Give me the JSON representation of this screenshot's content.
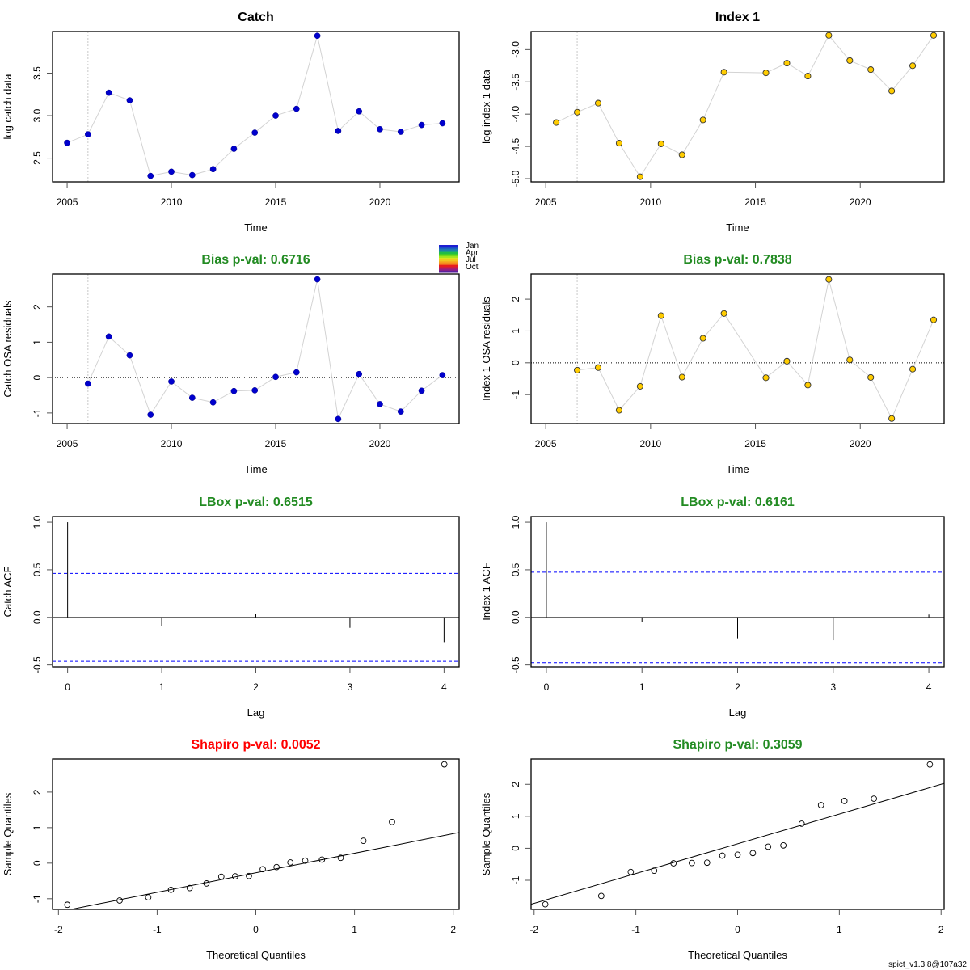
{
  "colors": {
    "catch_point": "#0000cd",
    "index_point": "#ffcc00",
    "green_title": "#228b22",
    "red_title": "#ff0000",
    "ci_line": "#0000ff",
    "connector": "#d3d3d3",
    "season_colors": [
      "#1e1ed2",
      "#1c4bc8",
      "#1e78b4",
      "#1ea082",
      "#22be46",
      "#50d21e",
      "#a0e61e",
      "#dce61e",
      "#f0c81e",
      "#f5a01e",
      "#f0641e",
      "#e61e1e",
      "#c81e46",
      "#961e82",
      "#5a1e9b"
    ]
  },
  "footer": "spict_v1.3.8@107a32",
  "season_legend": [
    "Jan",
    "Apr",
    "Jul",
    "Oct"
  ],
  "chart_data": [
    {
      "id": "catch",
      "type": "scatter",
      "title": "Catch",
      "title_color": "#000000",
      "xlabel": "Time",
      "ylabel": "log catch data",
      "xlim": [
        2004.3,
        2023.8
      ],
      "ylim": [
        2.22,
        3.99
      ],
      "xticks": [
        2005,
        2010,
        2015,
        2020
      ],
      "yticks": [
        2.5,
        3.0,
        3.5
      ],
      "ytick_labels": [
        "2.5",
        "3.0",
        "3.5"
      ],
      "vline": 2006,
      "point_style": "catch",
      "x": [
        2005,
        2006,
        2007,
        2008,
        2009,
        2010,
        2011,
        2012,
        2013,
        2014,
        2015,
        2016,
        2017,
        2018,
        2019,
        2020,
        2021,
        2022,
        2023
      ],
      "y": [
        2.68,
        2.78,
        3.27,
        3.18,
        2.29,
        2.34,
        2.3,
        2.37,
        2.61,
        2.8,
        3.0,
        3.08,
        3.94,
        2.82,
        3.05,
        2.84,
        2.81,
        2.89,
        2.91
      ]
    },
    {
      "id": "index1",
      "type": "scatter",
      "title": "Index 1",
      "title_color": "#000000",
      "xlabel": "Time",
      "ylabel": "log index 1 data",
      "xlim": [
        2004.3,
        2024.0
      ],
      "ylim": [
        -5.05,
        -2.72
      ],
      "xticks": [
        2005,
        2010,
        2015,
        2020
      ],
      "yticks": [
        -5.0,
        -4.5,
        -4.0,
        -3.5,
        -3.0
      ],
      "ytick_labels": [
        "-5.0",
        "-4.5",
        "-4.0",
        "-3.5",
        "-3.0"
      ],
      "vline": 2006.5,
      "point_style": "index",
      "x": [
        2005.5,
        2006.5,
        2007.5,
        2008.5,
        2009.5,
        2010.5,
        2011.5,
        2012.5,
        2013.5,
        2015.5,
        2016.5,
        2017.5,
        2018.5,
        2019.5,
        2020.5,
        2021.5,
        2022.5,
        2023.5
      ],
      "y": [
        -4.13,
        -3.97,
        -3.83,
        -4.45,
        -4.97,
        -4.46,
        -4.63,
        -4.09,
        -3.35,
        -3.36,
        -3.21,
        -3.41,
        -2.78,
        -3.17,
        -3.31,
        -3.64,
        -3.25,
        -2.78
      ]
    },
    {
      "id": "catch-osa",
      "type": "scatter",
      "title": "Bias p-val: 0.6716",
      "title_color": "#228b22",
      "xlabel": "Time",
      "ylabel": "Catch OSA residuals",
      "xlim": [
        2004.3,
        2023.8
      ],
      "ylim": [
        -1.3,
        2.93
      ],
      "xticks": [
        2005,
        2010,
        2015,
        2020
      ],
      "yticks": [
        -1,
        0,
        1,
        2
      ],
      "ytick_labels": [
        "-1",
        "0",
        "1",
        "2"
      ],
      "vline": 2006,
      "hline": 0,
      "point_style": "catch",
      "x": [
        2006,
        2007,
        2008,
        2009,
        2010,
        2011,
        2012,
        2013,
        2014,
        2015,
        2016,
        2017,
        2018,
        2019,
        2020,
        2021,
        2022,
        2023
      ],
      "y": [
        -0.17,
        1.16,
        0.63,
        -1.05,
        -0.11,
        -0.57,
        -0.7,
        -0.38,
        -0.36,
        0.02,
        0.15,
        2.78,
        -1.17,
        0.1,
        -0.75,
        -0.96,
        -0.37,
        0.07
      ]
    },
    {
      "id": "index1-osa",
      "type": "scatter",
      "title": "Bias p-val: 0.7838",
      "title_color": "#228b22",
      "xlabel": "Time",
      "ylabel": "Index 1 OSA residuals",
      "xlim": [
        2004.3,
        2024.0
      ],
      "ylim": [
        -1.91,
        2.79
      ],
      "xticks": [
        2005,
        2010,
        2015,
        2020
      ],
      "yticks": [
        -1,
        0,
        1,
        2
      ],
      "ytick_labels": [
        "-1",
        "0",
        "1",
        "2"
      ],
      "vline": 2006.5,
      "hline": 0,
      "point_style": "index",
      "x": [
        2006.5,
        2007.5,
        2008.5,
        2009.5,
        2010.5,
        2011.5,
        2012.5,
        2013.5,
        2015.5,
        2016.5,
        2017.5,
        2018.5,
        2019.5,
        2020.5,
        2021.5,
        2022.5,
        2023.5
      ],
      "y": [
        -0.23,
        -0.15,
        -1.49,
        -0.74,
        1.48,
        -0.45,
        0.77,
        1.55,
        -0.47,
        0.05,
        -0.7,
        2.62,
        0.09,
        -0.46,
        -1.75,
        -0.2,
        1.35
      ]
    },
    {
      "id": "catch-acf",
      "type": "bar",
      "title": "LBox p-val: 0.6515",
      "title_color": "#228b22",
      "xlabel": "Lag",
      "ylabel": "Catch ACF",
      "xlim": [
        -0.16,
        4.16
      ],
      "ylim": [
        -0.52,
        1.06
      ],
      "xticks": [
        0,
        1,
        2,
        3,
        4
      ],
      "yticks": [
        -0.5,
        0.0,
        0.5,
        1.0
      ],
      "ytick_labels": [
        "-0.5",
        "0.0",
        "0.5",
        "1.0"
      ],
      "ci": 0.462,
      "lags": [
        0,
        1,
        2,
        3,
        4
      ],
      "values": [
        1.0,
        -0.09,
        0.04,
        -0.11,
        -0.26
      ]
    },
    {
      "id": "index1-acf",
      "type": "bar",
      "title": "LBox p-val: 0.6161",
      "title_color": "#228b22",
      "xlabel": "Lag",
      "ylabel": "Index 1 ACF",
      "xlim": [
        -0.16,
        4.16
      ],
      "ylim": [
        -0.52,
        1.06
      ],
      "xticks": [
        0,
        1,
        2,
        3,
        4
      ],
      "yticks": [
        -0.5,
        0.0,
        0.5,
        1.0
      ],
      "ytick_labels": [
        "-0.5",
        "0.0",
        "0.5",
        "1.0"
      ],
      "ci": 0.475,
      "lags": [
        0,
        1,
        2,
        3,
        4
      ],
      "values": [
        1.0,
        -0.05,
        -0.22,
        -0.24,
        0.03
      ]
    },
    {
      "id": "catch-qq",
      "type": "scatter",
      "title": "Shapiro p-val: 0.0052",
      "title_color": "#ff0000",
      "xlabel": "Theoretical Quantiles",
      "ylabel": "Sample Quantiles",
      "xlim": [
        -2.06,
        2.06
      ],
      "ylim": [
        -1.3,
        2.93
      ],
      "xticks": [
        -2,
        -1,
        0,
        1,
        2
      ],
      "yticks": [
        -1,
        0,
        1,
        2
      ],
      "ytick_labels": [
        "-1",
        "0",
        "1",
        "2"
      ],
      "point_style": "open",
      "qq_line": {
        "intercept": -0.27,
        "slope": 0.55
      },
      "x": [
        -1.91,
        -1.38,
        -1.09,
        -0.86,
        -0.67,
        -0.5,
        -0.35,
        -0.21,
        -0.07,
        0.07,
        0.21,
        0.35,
        0.5,
        0.67,
        0.86,
        1.09,
        1.38,
        1.91
      ],
      "y": [
        -1.17,
        -1.05,
        -0.96,
        -0.75,
        -0.7,
        -0.57,
        -0.38,
        -0.37,
        -0.36,
        -0.17,
        -0.11,
        0.02,
        0.07,
        0.1,
        0.15,
        0.63,
        1.16,
        2.78
      ]
    },
    {
      "id": "index1-qq",
      "type": "scatter",
      "title": "Shapiro p-val: 0.3059",
      "title_color": "#228b22",
      "xlabel": "Theoretical Quantiles",
      "ylabel": "Sample Quantiles",
      "xlim": [
        -2.03,
        2.03
      ],
      "ylim": [
        -1.91,
        2.79
      ],
      "xticks": [
        -2,
        -1,
        0,
        1,
        2
      ],
      "yticks": [
        -1,
        0,
        1,
        2
      ],
      "ytick_labels": [
        "-1",
        "0",
        "1",
        "2"
      ],
      "point_style": "open",
      "qq_line": {
        "intercept": 0.14,
        "slope": 0.93
      },
      "x": [
        -1.89,
        -1.34,
        -1.05,
        -0.82,
        -0.63,
        -0.45,
        -0.3,
        -0.15,
        0.0,
        0.15,
        0.3,
        0.45,
        0.63,
        0.82,
        1.05,
        1.34,
        1.89
      ],
      "y": [
        -1.75,
        -1.49,
        -0.74,
        -0.7,
        -0.47,
        -0.46,
        -0.45,
        -0.23,
        -0.2,
        -0.15,
        0.05,
        0.09,
        0.77,
        1.35,
        1.48,
        1.55,
        2.62
      ]
    }
  ]
}
